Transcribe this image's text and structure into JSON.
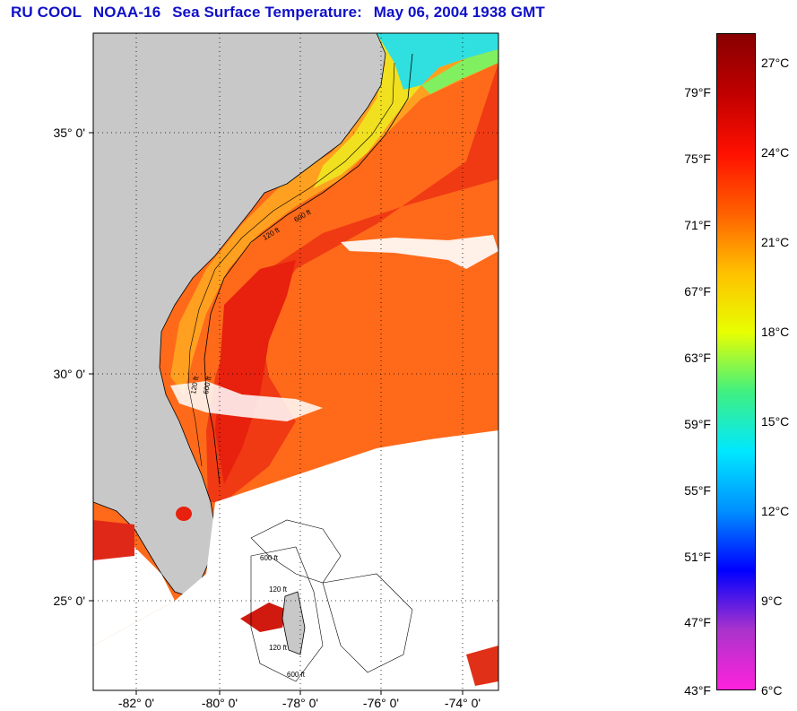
{
  "title": {
    "org": "RU COOL",
    "satellite": "NOAA-16",
    "product": "Sea Surface Temperature:",
    "datetime": "May 06, 2004 1938 GMT"
  },
  "map": {
    "lat_labels": [
      "35° 0'",
      "30° 0'",
      "25° 0'"
    ],
    "lon_labels": [
      "-82° 0'",
      "-80° 0'",
      "-78° 0'",
      "-76° 0'",
      "-74° 0'"
    ],
    "isobath_labels": [
      "600 ft",
      "120 ft",
      "600 ft",
      "120 ft",
      "600 ft",
      "120 ft",
      "600 ft",
      "120 ft"
    ],
    "colors": {
      "land": "#c8c8c8",
      "cloud": "#ffffff",
      "gulf_stream": "#f02a10",
      "offshore": "#ff6a1a",
      "shelf": "#ffb020",
      "cold_shelf": "#20e0e0"
    }
  },
  "colorbar": {
    "fahrenheit_labels": [
      "79°F",
      "75°F",
      "71°F",
      "67°F",
      "63°F",
      "59°F",
      "55°F",
      "51°F",
      "47°F",
      "43°F"
    ],
    "celsius_labels": [
      "27°C",
      "24°C",
      "21°C",
      "18°C",
      "15°C",
      "12°C",
      "9°C",
      "6°C"
    ],
    "range_celsius": [
      6,
      28
    ],
    "stops": [
      "#ff22dd",
      "#aa33cc",
      "#0000ff",
      "#0090ff",
      "#00e8ff",
      "#40f080",
      "#e8ff00",
      "#ffc000",
      "#ff6000",
      "#ff1000",
      "#c00000",
      "#880000"
    ]
  }
}
